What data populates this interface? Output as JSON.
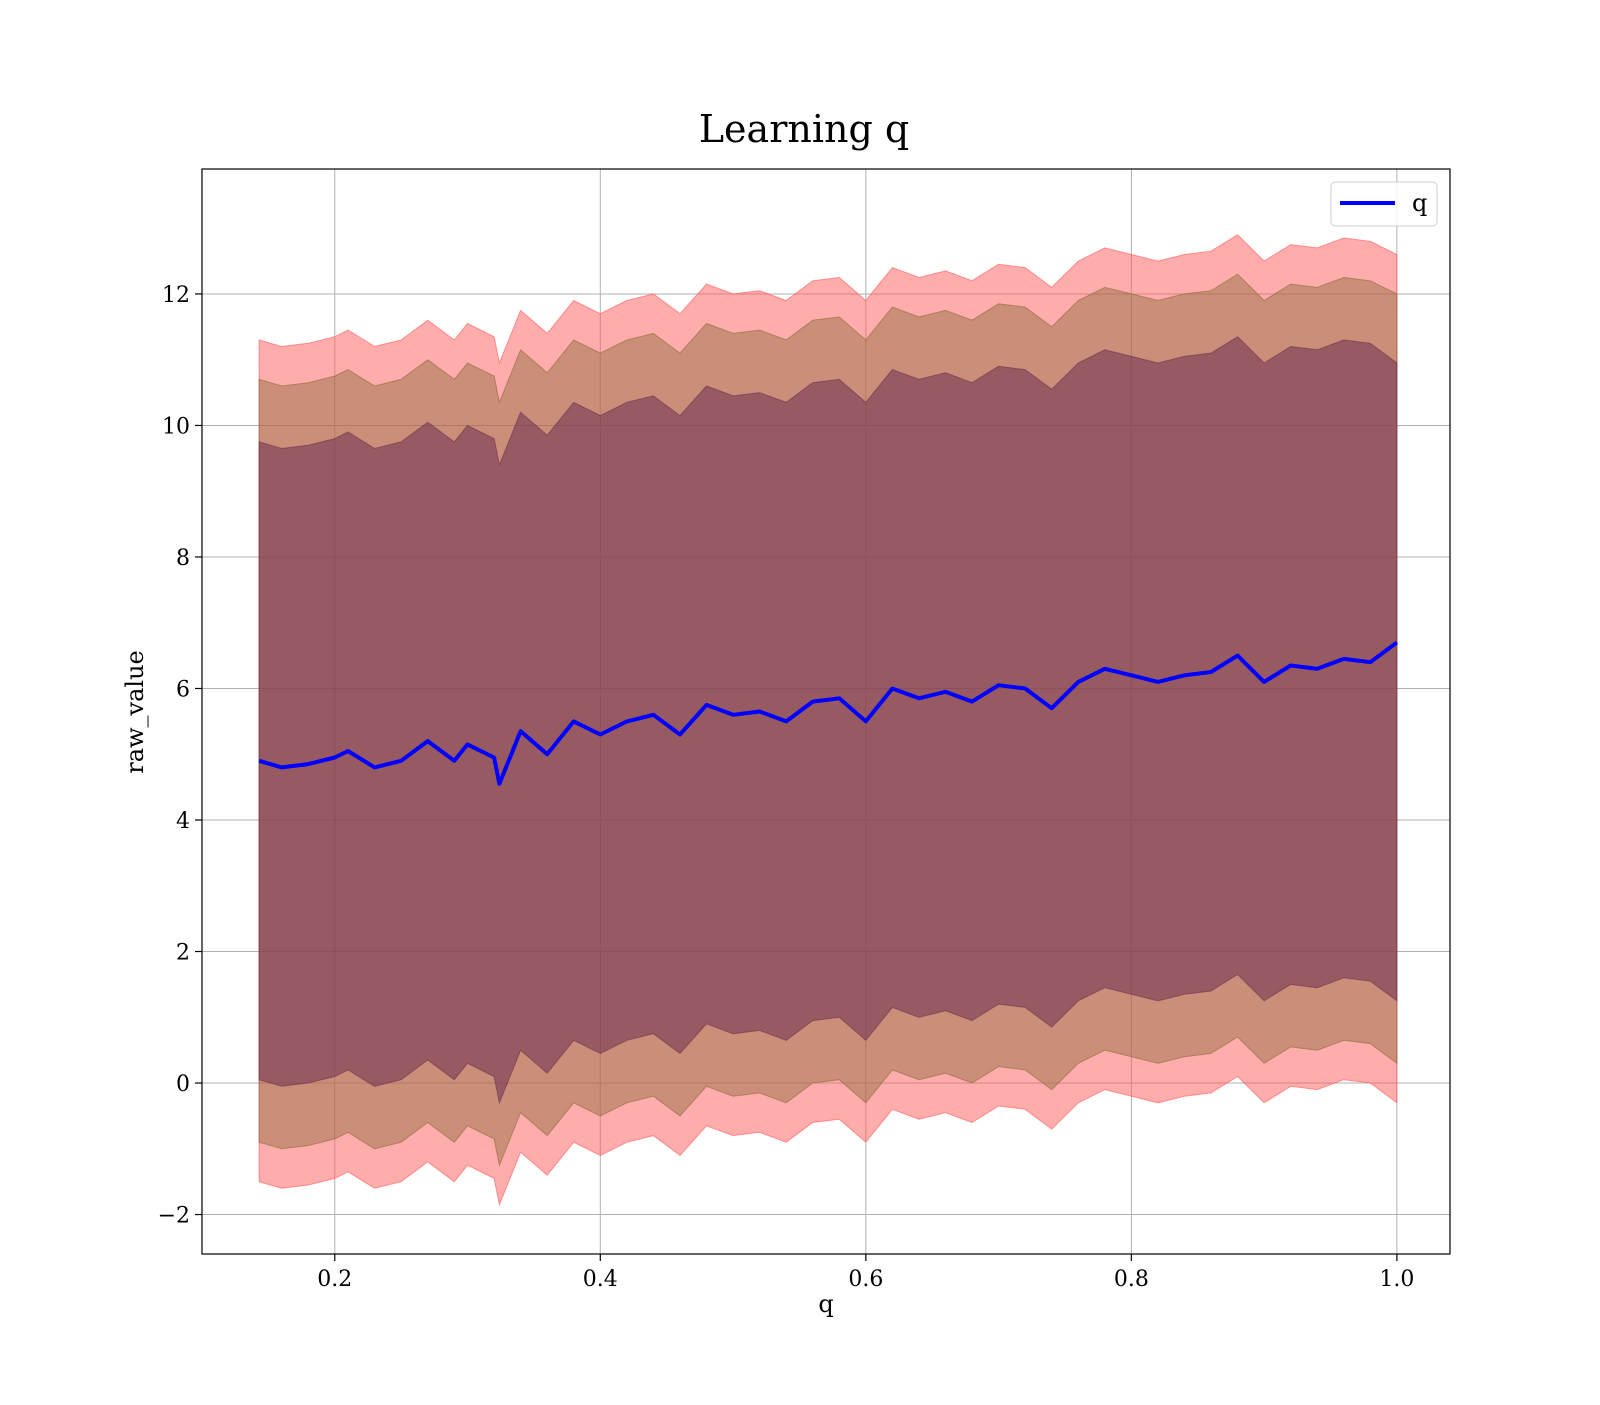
{
  "chart_data": {
    "type": "area",
    "title": "Learning q",
    "xlabel": "q",
    "ylabel": "raw_value",
    "xlim": [
      0.1,
      1.04
    ],
    "ylim": [
      -2.6,
      13.9
    ],
    "xticks": [
      0.2,
      0.4,
      0.6,
      0.8,
      1.0
    ],
    "xtick_labels": [
      "0.2",
      "0.4",
      "0.6",
      "0.8",
      "1.0"
    ],
    "yticks": [
      -2,
      0,
      2,
      4,
      6,
      8,
      10,
      12
    ],
    "ytick_labels": [
      "−2",
      "0",
      "2",
      "4",
      "6",
      "8",
      "10",
      "12"
    ],
    "grid": true,
    "legend": {
      "position": "top-right",
      "entries": [
        {
          "label": "q",
          "color": "#0000ff"
        }
      ]
    },
    "line": {
      "name": "q",
      "color": "#0000ff",
      "x": [
        0.143,
        0.16,
        0.18,
        0.2,
        0.21,
        0.23,
        0.25,
        0.27,
        0.29,
        0.3,
        0.32,
        0.324,
        0.34,
        0.36,
        0.38,
        0.4,
        0.42,
        0.44,
        0.46,
        0.48,
        0.5,
        0.52,
        0.54,
        0.56,
        0.58,
        0.6,
        0.62,
        0.64,
        0.66,
        0.68,
        0.7,
        0.72,
        0.74,
        0.76,
        0.78,
        0.8,
        0.82,
        0.84,
        0.86,
        0.88,
        0.9,
        0.92,
        0.94,
        0.96,
        0.98,
        1.0
      ],
      "y": [
        4.9,
        4.8,
        4.85,
        4.95,
        5.05,
        4.8,
        4.9,
        5.2,
        4.9,
        5.15,
        4.95,
        4.55,
        5.35,
        5.0,
        5.5,
        5.3,
        5.5,
        5.6,
        5.3,
        5.75,
        5.6,
        5.65,
        5.5,
        5.8,
        5.85,
        5.5,
        6.0,
        5.85,
        5.95,
        5.8,
        6.05,
        6.0,
        5.7,
        6.1,
        6.3,
        6.2,
        6.1,
        6.2,
        6.25,
        6.5,
        6.1,
        6.35,
        6.3,
        6.45,
        6.4,
        6.7
      ]
    },
    "bands": [
      {
        "name": "band-outer",
        "color": "#ff5a5a",
        "opacity": 0.5,
        "upper": [
          11.3,
          11.2,
          11.25,
          11.35,
          11.45,
          11.2,
          11.3,
          11.6,
          11.3,
          11.55,
          11.35,
          10.95,
          11.75,
          11.4,
          11.9,
          11.7,
          11.9,
          12.0,
          11.7,
          12.15,
          12.0,
          12.05,
          11.9,
          12.2,
          12.25,
          11.9,
          12.4,
          12.25,
          12.35,
          12.2,
          12.45,
          12.4,
          12.1,
          12.5,
          12.7,
          12.6,
          12.5,
          12.6,
          12.65,
          12.9,
          12.5,
          12.75,
          12.7,
          12.85,
          12.8,
          12.6
        ],
        "lower": [
          -1.5,
          -1.6,
          -1.55,
          -1.45,
          -1.35,
          -1.6,
          -1.5,
          -1.2,
          -1.5,
          -1.25,
          -1.45,
          -1.85,
          -1.05,
          -1.4,
          -0.9,
          -1.1,
          -0.9,
          -0.8,
          -1.1,
          -0.65,
          -0.8,
          -0.75,
          -0.9,
          -0.6,
          -0.55,
          -0.9,
          -0.4,
          -0.55,
          -0.45,
          -0.6,
          -0.35,
          -0.4,
          -0.7,
          -0.3,
          -0.1,
          -0.2,
          -0.3,
          -0.2,
          -0.15,
          0.1,
          -0.3,
          -0.05,
          -0.1,
          0.05,
          0.0,
          -0.3
        ]
      },
      {
        "name": "band-middle",
        "color": "#8b6a3a",
        "opacity": 0.45,
        "upper": [
          10.7,
          10.6,
          10.65,
          10.75,
          10.85,
          10.6,
          10.7,
          11.0,
          10.7,
          10.95,
          10.75,
          10.35,
          11.15,
          10.8,
          11.3,
          11.1,
          11.3,
          11.4,
          11.1,
          11.55,
          11.4,
          11.45,
          11.3,
          11.6,
          11.65,
          11.3,
          11.8,
          11.65,
          11.75,
          11.6,
          11.85,
          11.8,
          11.5,
          11.9,
          12.1,
          12.0,
          11.9,
          12.0,
          12.05,
          12.3,
          11.9,
          12.15,
          12.1,
          12.25,
          12.2,
          12.0
        ],
        "lower": [
          -0.9,
          -1.0,
          -0.95,
          -0.85,
          -0.75,
          -1.0,
          -0.9,
          -0.6,
          -0.9,
          -0.65,
          -0.85,
          -1.25,
          -0.45,
          -0.8,
          -0.3,
          -0.5,
          -0.3,
          -0.2,
          -0.5,
          -0.05,
          -0.2,
          -0.15,
          -0.3,
          0.0,
          0.05,
          -0.3,
          0.2,
          0.05,
          0.15,
          0.0,
          0.25,
          0.2,
          -0.1,
          0.3,
          0.5,
          0.4,
          0.3,
          0.4,
          0.45,
          0.7,
          0.3,
          0.55,
          0.5,
          0.65,
          0.6,
          0.3
        ]
      },
      {
        "name": "band-inner",
        "color": "#6e3050",
        "opacity": 0.55,
        "upper": [
          9.75,
          9.65,
          9.7,
          9.8,
          9.9,
          9.65,
          9.75,
          10.05,
          9.75,
          10.0,
          9.8,
          9.4,
          10.2,
          9.85,
          10.35,
          10.15,
          10.35,
          10.45,
          10.15,
          10.6,
          10.45,
          10.5,
          10.35,
          10.65,
          10.7,
          10.35,
          10.85,
          10.7,
          10.8,
          10.65,
          10.9,
          10.85,
          10.55,
          10.95,
          11.15,
          11.05,
          10.95,
          11.05,
          11.1,
          11.35,
          10.95,
          11.2,
          11.15,
          11.3,
          11.25,
          10.95
        ],
        "lower": [
          0.05,
          -0.05,
          0.0,
          0.1,
          0.2,
          -0.05,
          0.05,
          0.35,
          0.05,
          0.3,
          0.1,
          -0.3,
          0.5,
          0.15,
          0.65,
          0.45,
          0.65,
          0.75,
          0.45,
          0.9,
          0.75,
          0.8,
          0.65,
          0.95,
          1.0,
          0.65,
          1.15,
          1.0,
          1.1,
          0.95,
          1.2,
          1.15,
          0.85,
          1.25,
          1.45,
          1.35,
          1.25,
          1.35,
          1.4,
          1.65,
          1.25,
          1.5,
          1.45,
          1.6,
          1.55,
          1.25
        ]
      }
    ]
  }
}
